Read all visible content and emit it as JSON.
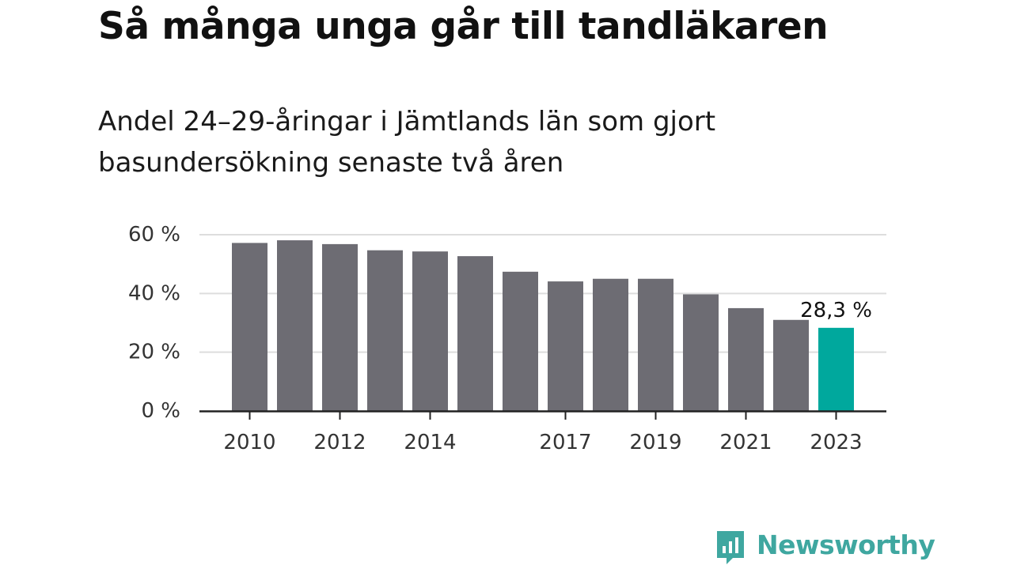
{
  "title": "Så många unga går till tandläkaren",
  "subtitle": "Andel 24–29-åringar i Jämtlands län som gjort basundersökning senaste två åren",
  "brand": {
    "name": "Newsworthy",
    "color": "#3fa7a0"
  },
  "chart_data": {
    "type": "bar",
    "categories": [
      "2010",
      "2011",
      "2012",
      "2013",
      "2014",
      "2015",
      "2016",
      "2017",
      "2018",
      "2019",
      "2020",
      "2021",
      "2022",
      "2023"
    ],
    "x_tick_labels": [
      "2010",
      "2012",
      "2014",
      "2017",
      "2019",
      "2021",
      "2023"
    ],
    "values": [
      57.2,
      58.1,
      56.8,
      54.7,
      54.3,
      52.7,
      47.4,
      44.1,
      45.0,
      45.0,
      39.7,
      35.0,
      31.0,
      28.3
    ],
    "ylim": [
      0,
      60
    ],
    "y_ticks": [
      0,
      20,
      40,
      60
    ],
    "y_tick_labels": [
      "0 %",
      "20 %",
      "40 %",
      "60 %"
    ],
    "grid": true,
    "bar_color": "#6d6c73",
    "highlight_color": "#00a89d",
    "highlight_index": 13,
    "highlight_label": "28,3 %"
  }
}
